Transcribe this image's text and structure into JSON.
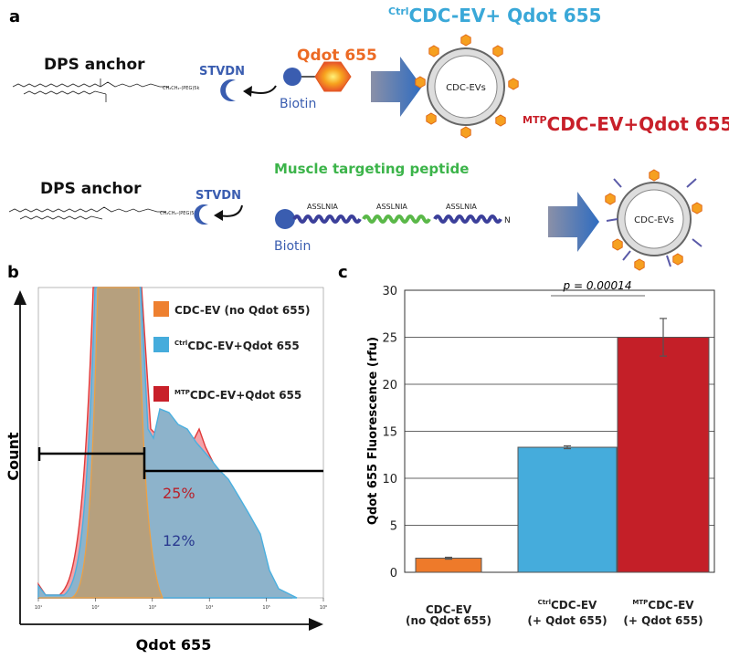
{
  "panel_a": {
    "label": "a",
    "row1": {
      "title_sup": "Ctrl",
      "title": "CDC-EV+ Qdot 655",
      "anchor": "DPS anchor",
      "linker": "CH₂CH₂-(PEG)5k",
      "stvdn": "STVDN",
      "qdot": "Qdot 655",
      "biotin": "Biotin",
      "ev": "CDC-EVs"
    },
    "row2": {
      "title_sup": "MTP",
      "title": "CDC-EV+Qdot 655",
      "anchor": "DPS anchor",
      "linker": "CH₂CH₂-(PEG)5k",
      "stvdn": "STVDN",
      "peptide_title": "Muscle targeting peptide",
      "peptide_units": [
        "ASSLNIA",
        "ASSLNIA",
        "ASSLNIA"
      ],
      "terminus": "N",
      "biotin": "Biotin",
      "ev": "CDC-EVs"
    },
    "colors": {
      "ctrl": "#3aa8d8",
      "mtp": "#c8202a",
      "qdot": "#ec6a24",
      "peptide": "#3cb44a",
      "stvdn": "#3a5db0"
    }
  },
  "chart_data": [
    {
      "panel": "b",
      "type": "area",
      "title": "",
      "xlabel": "Qdot 655",
      "ylabel": "Count",
      "xscale": "log",
      "xlim": [
        10,
        1000000
      ],
      "xticks": [
        "10¹",
        "10²",
        "10³",
        "10⁴",
        "10⁵",
        "10⁶"
      ],
      "legend": [
        {
          "sup": "",
          "label": "CDC-EV (no Qdot 655)",
          "color": "#ee8030"
        },
        {
          "sup": "Ctrl",
          "label": "CDC-EV+Qdot 655",
          "color": "#45acdc"
        },
        {
          "sup": "MTP",
          "label": "CDC-EV+Qdot 655",
          "color": "#c8202a"
        }
      ],
      "legend_position": "top-right",
      "annotations": {
        "mtp_pct": "25%",
        "ctrl_pct": "12%"
      },
      "gate_threshold": 700
    },
    {
      "panel": "c",
      "type": "bar",
      "title": "",
      "ylabel": "Qdot 655 Fluorescence (rfu)",
      "xlabel": "",
      "ylim": [
        0,
        30
      ],
      "yticks": [
        0,
        5,
        10,
        15,
        20,
        25,
        30
      ],
      "grid": true,
      "categories": [
        {
          "sup": "",
          "line1": "CDC-EV",
          "line2": "(no Qdot 655)"
        },
        {
          "sup": "Ctrl",
          "line1": "CDC-EV",
          "line2": "(+ Qdot 655)"
        },
        {
          "sup": "MTP",
          "line1": "CDC-EV",
          "line2": "(+ Qdot 655)"
        }
      ],
      "values": [
        1.5,
        13.3,
        25.0
      ],
      "errors": [
        0.1,
        0.15,
        2.0
      ],
      "colors": [
        "#ee7a2a",
        "#45acdc",
        "#c41f28"
      ],
      "annotation": "p = 0.00014"
    }
  ],
  "panel_b_label": "b",
  "panel_c_label": "c"
}
